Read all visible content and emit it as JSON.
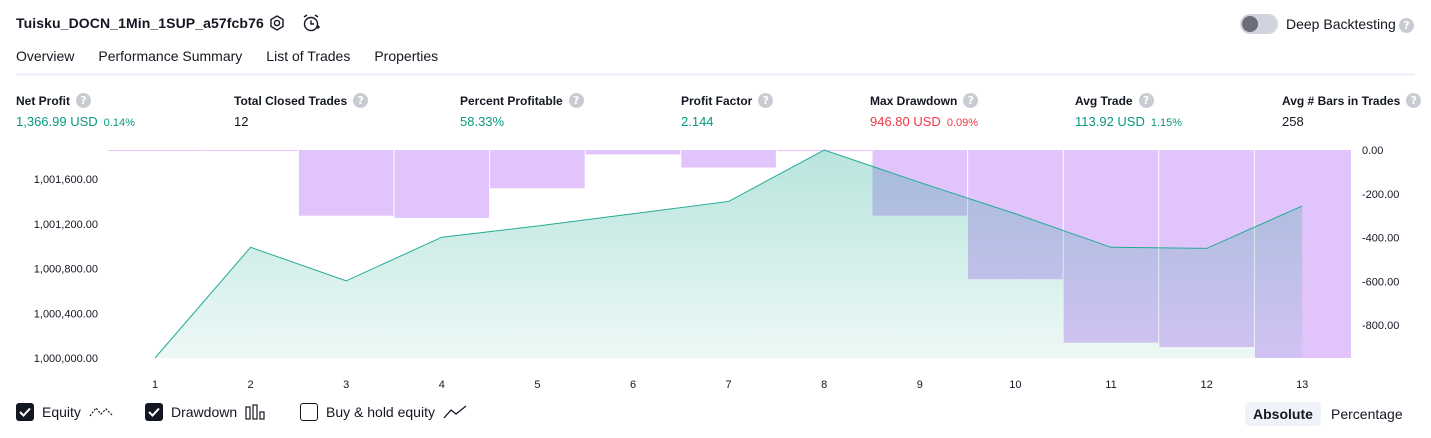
{
  "header": {
    "title": "Tuisku_DOCN_1Min_1SUP_a57fcb76",
    "deep_backtesting_label": "Deep Backtesting",
    "deep_backtesting_on": false,
    "help_glyph": "?"
  },
  "tabs": [
    {
      "label": "Overview",
      "active": true
    },
    {
      "label": "Performance Summary",
      "active": false
    },
    {
      "label": "List of Trades",
      "active": false
    },
    {
      "label": "Properties",
      "active": false
    }
  ],
  "metrics": [
    {
      "label": "Net Profit",
      "value": "1,366.99 USD",
      "pct": "0.14%",
      "color": "green"
    },
    {
      "label": "Total Closed Trades",
      "value": "12",
      "pct": "",
      "color": "dark"
    },
    {
      "label": "Percent Profitable",
      "value": "58.33%",
      "pct": "",
      "color": "green"
    },
    {
      "label": "Profit Factor",
      "value": "2.144",
      "pct": "",
      "color": "green"
    },
    {
      "label": "Max Drawdown",
      "value": "946.80 USD",
      "pct": "0.09%",
      "color": "red"
    },
    {
      "label": "Avg Trade",
      "value": "113.92 USD",
      "pct": "1.15%",
      "color": "green"
    },
    {
      "label": "Avg # Bars in Trades",
      "value": "258",
      "pct": "",
      "color": "dark"
    }
  ],
  "chart_data": {
    "type": "line",
    "x": [
      "1",
      "2",
      "3",
      "4",
      "5",
      "6",
      "7",
      "8",
      "9",
      "10",
      "11",
      "12",
      "13"
    ],
    "series": [
      {
        "name": "Equity",
        "type": "area",
        "color": "#22ab94",
        "values": [
          1000000,
          1000990,
          1000690,
          1001080,
          1001180,
          1001290,
          1001400,
          1001860,
          1001570,
          1001290,
          1000990,
          1000980,
          1001360
        ]
      },
      {
        "name": "Drawdown",
        "type": "bar",
        "color": "#e1c4fb",
        "values": [
          -2,
          -2,
          -300,
          -310,
          -175,
          -20,
          -80,
          -5,
          -300,
          -590,
          -880,
          -900,
          -950
        ]
      }
    ],
    "y_left": {
      "ticks": [
        "1,000,000.00",
        "1,000,400.00",
        "1,000,800.00",
        "1,001,200.00",
        "1,001,600.00"
      ],
      "range": [
        1000000,
        1001860
      ]
    },
    "y_right": {
      "ticks": [
        "0.00",
        "-200.00",
        "-400.00",
        "-600.00",
        "-800.00"
      ],
      "range": [
        -950,
        0
      ]
    }
  },
  "legend": {
    "equity": {
      "label": "Equity",
      "checked": true,
      "icon": "equity-line-icon"
    },
    "drawdown": {
      "label": "Drawdown",
      "checked": true,
      "icon": "drawdown-bars-icon"
    },
    "buyhold": {
      "label": "Buy & hold equity",
      "checked": false,
      "icon": "buyhold-line-icon"
    }
  },
  "scale_toggle": {
    "absolute": "Absolute",
    "percentage": "Percentage",
    "selected": "Absolute"
  }
}
